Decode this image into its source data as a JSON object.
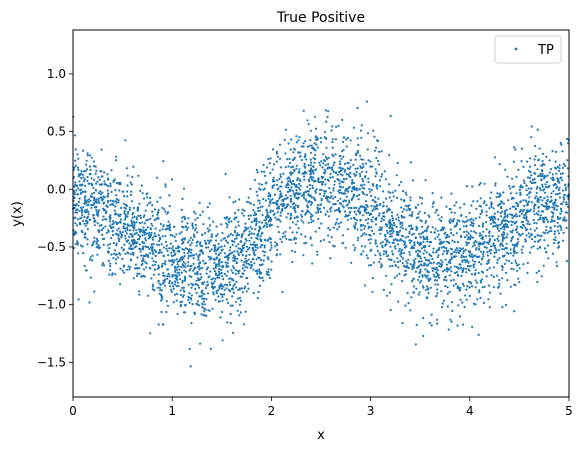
{
  "chart_data": {
    "type": "scatter",
    "title": "True Positive",
    "xlabel": "x",
    "ylabel": "y(x)",
    "xlim": [
      0,
      5
    ],
    "ylim": [
      -1.8,
      1.38
    ],
    "xticks": [
      0,
      1,
      2,
      3,
      4,
      5
    ],
    "xtick_labels": [
      "0",
      "1",
      "2",
      "3",
      "4",
      "5"
    ],
    "yticks": [
      -1.5,
      -1.0,
      -0.5,
      0.0,
      0.5,
      1.0
    ],
    "ytick_labels": [
      "−1.5",
      "−1.0",
      "−0.5",
      "0.0",
      "0.5",
      "1.0"
    ],
    "grid": false,
    "legend": {
      "position": "top-right",
      "entries": [
        "TP"
      ]
    },
    "series": [
      {
        "name": "TP",
        "color": "#1f77b4",
        "trend": {
          "x": [
            0,
            0.25,
            0.5,
            0.75,
            1.0,
            1.25,
            1.5,
            1.75,
            2.0,
            2.25,
            2.5,
            2.75,
            3.0,
            3.25,
            3.5,
            3.75,
            4.0,
            4.25,
            4.5,
            4.75,
            5.0
          ],
          "y": [
            -0.05,
            -0.2,
            -0.33,
            -0.45,
            -0.6,
            -0.72,
            -0.72,
            -0.55,
            -0.25,
            0.0,
            0.08,
            -0.02,
            -0.15,
            -0.35,
            -0.55,
            -0.62,
            -0.55,
            -0.42,
            -0.25,
            -0.1,
            -0.1
          ]
        },
        "point_count": 4000,
        "spread_sd": 0.25
      }
    ]
  }
}
